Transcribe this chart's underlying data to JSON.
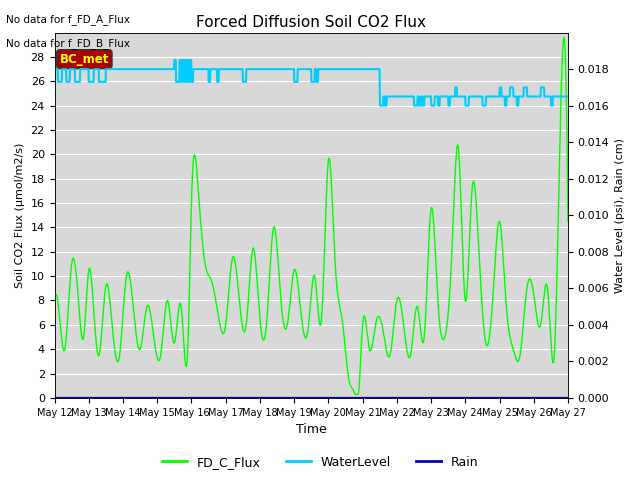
{
  "title": "Forced Diffusion Soil CO2 Flux",
  "xlabel": "Time",
  "ylabel_left": "Soil CO2 Flux (μmol/m2/s)",
  "ylabel_right": "Water Level (psi), Rain (cm)",
  "text_no_data_1": "No data for f_FD_A_Flux",
  "text_no_data_2": "No data for f_FD_B_Flux",
  "bc_met_label": "BC_met",
  "ylim_left": [
    0,
    30
  ],
  "ylim_right": [
    0.0,
    0.02
  ],
  "yticks_left": [
    0,
    2,
    4,
    6,
    8,
    10,
    12,
    14,
    16,
    18,
    20,
    22,
    24,
    26,
    28
  ],
  "yticks_right": [
    0.0,
    0.002,
    0.004,
    0.006,
    0.008,
    0.01,
    0.012,
    0.014,
    0.016,
    0.018
  ],
  "bg_color": "#d8d8d8",
  "grid_color": "#ffffff",
  "flux_color": "#00ff00",
  "water_color": "#00ccff",
  "rain_color": "#0000bb",
  "bc_met_bg": "#aa0000",
  "bc_met_fg": "#ffff00",
  "x_tick_labels": [
    "May 12",
    "May 13",
    "May 14",
    "May 15",
    "May 16",
    "May 17",
    "May 18",
    "May 19",
    "May 20",
    "May 21",
    "May 22",
    "May 23",
    "May 24",
    "May 25",
    "May 26",
    "May 27"
  ],
  "figsize": [
    6.4,
    4.8
  ],
  "dpi": 100
}
